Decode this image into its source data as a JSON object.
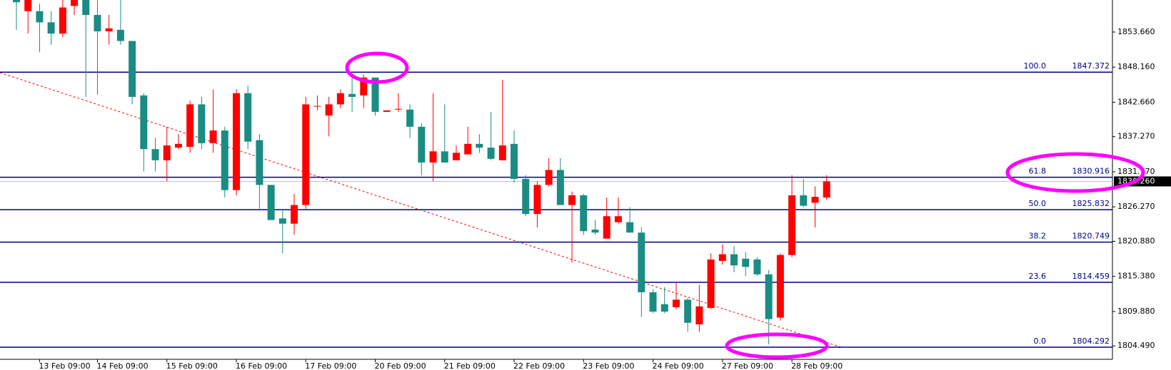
{
  "chart_data": {
    "type": "candlestick",
    "categories": [
      null,
      null,
      "13 Feb 09:00",
      null,
      null,
      null,
      null,
      "14 Feb 09:00",
      null,
      null,
      null,
      null,
      null,
      "15 Feb 09:00",
      null,
      null,
      null,
      null,
      null,
      "16 Feb 09:00",
      null,
      null,
      null,
      null,
      null,
      "17 Feb 09:00",
      null,
      null,
      null,
      null,
      null,
      "20 Feb 09:00",
      null,
      null,
      null,
      null,
      null,
      "21 Feb 09:00",
      null,
      null,
      null,
      null,
      null,
      "22 Feb 09:00",
      null,
      null,
      null,
      null,
      null,
      "23 Feb 09:00",
      null,
      null,
      null,
      null,
      null,
      "24 Feb 09:00",
      null,
      null,
      null,
      null,
      null,
      "27 Feb 09:00",
      null,
      null,
      null,
      null,
      null,
      "28 Feb 09:00",
      null,
      null,
      null
    ],
    "open": [
      1858.68,
      1856.93,
      1856.93,
      1855.18,
      1853.42,
      1857.75,
      1858.68,
      1856.34,
      1853.77,
      1854.01,
      1852.26,
      1843.73,
      1835.32,
      1833.57,
      1835.55,
      1835.67,
      1842.33,
      1836.25,
      1838.24,
      1828.9,
      1844.08,
      1836.72,
      1829.71,
      1824.46,
      1823.64,
      1826.56,
      1841.98,
      1840.58,
      1842.33,
      1843.96,
      1843.73,
      1846.53,
      1841.16,
      1841.51,
      1841.51,
      1838.82,
      1833.22,
      1834.97,
      1833.57,
      1834.5,
      1836.14,
      1835.55,
      1833.57,
      1836.14,
      1830.65,
      1825.16,
      1829.71,
      1832.05,
      1826.56,
      1828.08,
      1822.71,
      1821.3,
      1823.87,
      1823.87,
      1822.24,
      1812.89,
      1811.03,
      1810.56,
      1811.73,
      1807.87,
      1810.44,
      1817.8,
      1818.85,
      1818.15,
      1818.03,
      1815.7,
      1808.92,
      1818.73,
      1828.08,
      1826.91,
      1827.73
    ],
    "high": [
      1858.68,
      1858.68,
      1858.1,
      1856.93,
      1858.68,
      1858.68,
      1858.68,
      1858.68,
      1856.34,
      1858.68,
      1852.26,
      1844.08,
      1837.07,
      1838.82,
      1837.66,
      1842.91,
      1843.5,
      1844.66,
      1838.82,
      1844.66,
      1845.25,
      1837.66,
      1829.71,
      1825.98,
      1828.31,
      1843.5,
      1843.73,
      1843.5,
      1844.66,
      1847.0,
      1847.0,
      1846.53,
      1841.39,
      1844.08,
      1842.33,
      1839.41,
      1844.08,
      1842.33,
      1835.9,
      1838.82,
      1837.66,
      1841.16,
      1846.18,
      1838.24,
      1831.23,
      1830.3,
      1833.92,
      1833.92,
      1828.66,
      1828.31,
      1824.22,
      1827.73,
      1827.73,
      1826.21,
      1823.06,
      1813.36,
      1813.71,
      1814.3,
      1811.96,
      1814.06,
      1818.97,
      1820.37,
      1820.14,
      1819.2,
      1818.38,
      1816.4,
      1818.97,
      1831.23,
      1830.65,
      1829.48,
      1831.23
    ],
    "low": [
      1854.01,
      1853.42,
      1850.5,
      1851.67,
      1852.84,
      1856.34,
      1843.5,
      1843.85,
      1851.67,
      1851.67,
      1842.33,
      1831.82,
      1831.82,
      1830.3,
      1835.32,
      1834.74,
      1835.32,
      1834.74,
      1827.73,
      1828.08,
      1835.32,
      1825.98,
      1824.22,
      1818.97,
      1821.89,
      1825.98,
      1841.39,
      1837.31,
      1841.74,
      1841.16,
      1841.74,
      1840.58,
      1841.16,
      1841.16,
      1837.07,
      1831.23,
      1830.3,
      1833.22,
      1833.57,
      1834.5,
      1834.74,
      1833.57,
      1833.57,
      1830.06,
      1824.81,
      1823.06,
      1829.48,
      1826.56,
      1817.57,
      1821.89,
      1821.89,
      1821.3,
      1823.64,
      1822.24,
      1809.04,
      1809.62,
      1809.62,
      1810.21,
      1806.7,
      1806.7,
      1810.21,
      1817.22,
      1816.05,
      1815.46,
      1815.46,
      1804.72,
      1808.46,
      1818.38,
      1826.21,
      1823.06,
      1827.38
    ],
    "close": [
      1858.33,
      1858.68,
      1855.18,
      1853.42,
      1857.51,
      1858.68,
      1856.34,
      1853.77,
      1854.24,
      1852.26,
      1843.5,
      1835.32,
      1833.57,
      1835.9,
      1836.14,
      1842.33,
      1836.25,
      1838.24,
      1828.9,
      1844.08,
      1836.49,
      1829.71,
      1824.22,
      1823.64,
      1826.56,
      1842.33,
      1842.09,
      1842.33,
      1844.08,
      1843.5,
      1846.53,
      1841.16,
      1841.39,
      1841.63,
      1838.82,
      1833.22,
      1834.97,
      1833.22,
      1834.74,
      1836.14,
      1835.55,
      1833.8,
      1835.9,
      1830.65,
      1825.16,
      1829.71,
      1832.05,
      1826.56,
      1828.08,
      1822.47,
      1822.24,
      1824.81,
      1824.81,
      1822.24,
      1812.89,
      1809.86,
      1809.86,
      1811.73,
      1808.11,
      1810.68,
      1818.03,
      1818.85,
      1817.1,
      1816.87,
      1815.7,
      1808.69,
      1818.73,
      1828.08,
      1826.44,
      1827.84,
      1830.26
    ],
    "up_color": "#ff0000",
    "down_color": "#1a8c84",
    "ylim": [
      1802.39,
      1858.68
    ],
    "yticks": [
      {
        "value": 1853.66,
        "label": "1853.660"
      },
      {
        "value": 1848.16,
        "label": "1848.160"
      },
      {
        "value": 1842.66,
        "label": "1842.660"
      },
      {
        "value": 1837.27,
        "label": "1837.270"
      },
      {
        "value": 1831.77,
        "label": "1831.770"
      },
      {
        "value": 1826.27,
        "label": "1826.270"
      },
      {
        "value": 1820.88,
        "label": "1820.880"
      },
      {
        "value": 1815.38,
        "label": "1815.380"
      },
      {
        "value": 1809.88,
        "label": "1809.880"
      },
      {
        "value": 1804.49,
        "label": "1804.490"
      }
    ],
    "current_price": {
      "value": 1830.26,
      "label": "1830.260"
    },
    "fib_levels": [
      {
        "level": {
          "value": 100,
          "label": "100.0"
        },
        "price": 1847.372
      },
      {
        "level": 61.8,
        "price": 1830.916
      },
      {
        "level": {
          "value": 50,
          "label": "50.0"
        },
        "price": 1825.832
      },
      {
        "level": 38.2,
        "price": 1820.749
      },
      {
        "level": 23.6,
        "price": 1814.459
      },
      {
        "level": {
          "value": 0,
          "label": "0.0"
        },
        "price": 1804.292
      }
    ],
    "fib_color": "#000080"
  }
}
